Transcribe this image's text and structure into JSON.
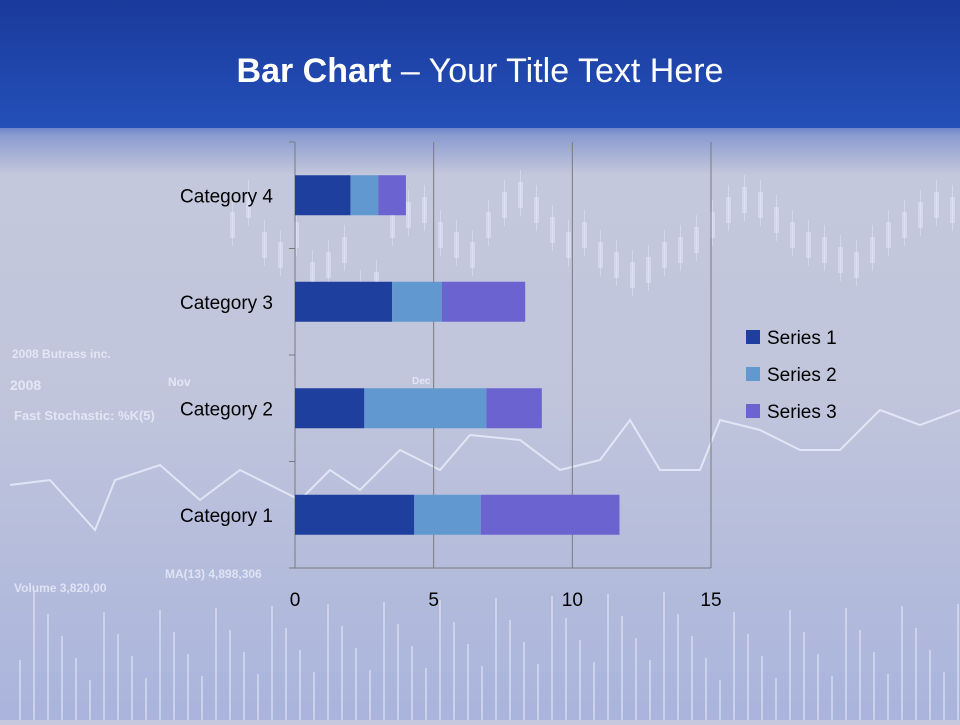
{
  "title": {
    "bold": "Bar Chart",
    "rest": " – Your Title Text Here"
  },
  "background_watermark": [
    "2008 Butrass inc.",
    "2008",
    "Nov",
    "Dec",
    "Fast Stochastic: %K(5)",
    "Volume 3,820,00",
    "MA(13) 4,898,306"
  ],
  "chart_data": {
    "type": "bar",
    "orientation": "horizontal",
    "stacked": true,
    "categories": [
      "Category 1",
      "Category 2",
      "Category 3",
      "Category 4"
    ],
    "series": [
      {
        "name": "Series 1",
        "values": [
          4.3,
          2.5,
          3.5,
          2.0
        ],
        "color": "#1f3f9f"
      },
      {
        "name": "Series 2",
        "values": [
          2.4,
          4.4,
          1.8,
          1.0
        ],
        "color": "#6098cf"
      },
      {
        "name": "Series 3",
        "values": [
          5.0,
          2.0,
          3.0,
          1.0
        ],
        "color": "#6a63d0"
      }
    ],
    "xlim": [
      0,
      15
    ],
    "xticks": [
      0,
      5,
      10,
      15
    ],
    "grid": true,
    "legend": "right"
  }
}
